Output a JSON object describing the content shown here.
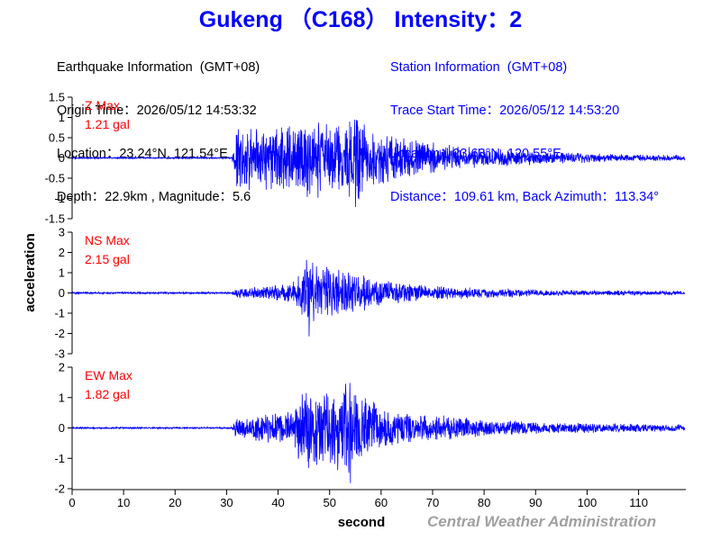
{
  "title": "Gukeng （C168） Intensity：2",
  "earthquake": {
    "header": "Earthquake Information  (GMT+08)",
    "origin_time": "Origin Time：2026/05/12 14:53:32",
    "location": "Location：23.24°N, 121.54°E",
    "depth_magnitude": "Depth：22.9km , Magnitude：5.6"
  },
  "station": {
    "header": "Station Information  (GMT+08)",
    "trace_start": "Trace Start Time：2026/05/12 14:53:20",
    "location": "Location：23.63°N, 120.55°E",
    "distance_azimuth": "Distance：109.61 km, Back Azimuth：113.34°"
  },
  "footer": "Central Weather Administration",
  "colors": {
    "trace": "#0000ff",
    "label": "#ff0000",
    "title": "#0000ff",
    "footer": "#a0a0a0"
  },
  "chart_data": {
    "type": "line",
    "xlabel": "second",
    "ylabel": "acceleration",
    "xlim": [
      0,
      119
    ],
    "xticks": [
      0,
      10,
      20,
      30,
      40,
      50,
      60,
      70,
      80,
      90,
      100,
      110
    ],
    "grid": false,
    "panels": [
      {
        "name": "Z",
        "label": "Z Max",
        "max_label": "1.21 gal",
        "max": 1.21,
        "ylim": [
          -1.5,
          1.5
        ],
        "yticks": [
          -1.5,
          -1,
          -0.5,
          0,
          0.5,
          1,
          1.5
        ],
        "ytick_labels": [
          "-1.5",
          "-1",
          "-0.5",
          "0",
          "0.5",
          "1",
          "1.5"
        ],
        "envelope": [
          [
            0,
            0.02
          ],
          [
            31,
            0.02
          ],
          [
            31.5,
            0.4
          ],
          [
            32,
            0.9
          ],
          [
            36,
            0.8
          ],
          [
            40,
            0.9
          ],
          [
            44,
            1.0
          ],
          [
            48,
            1.0
          ],
          [
            52,
            0.9
          ],
          [
            55,
            1.2
          ],
          [
            58,
            0.75
          ],
          [
            63,
            0.6
          ],
          [
            68,
            0.45
          ],
          [
            75,
            0.3
          ],
          [
            85,
            0.2
          ],
          [
            95,
            0.15
          ],
          [
            105,
            0.1
          ],
          [
            119,
            0.07
          ]
        ]
      },
      {
        "name": "NS",
        "label": "NS Max",
        "max_label": "2.15 gal",
        "max": 2.15,
        "ylim": [
          -3,
          3
        ],
        "yticks": [
          -3,
          -2,
          -1,
          0,
          1,
          2,
          3
        ],
        "ytick_labels": [
          "-3",
          "-2",
          "-1",
          "0",
          "1",
          "2",
          "3"
        ],
        "envelope": [
          [
            0,
            0.05
          ],
          [
            31,
            0.05
          ],
          [
            32,
            0.25
          ],
          [
            38,
            0.35
          ],
          [
            43,
            0.6
          ],
          [
            45,
            1.3
          ],
          [
            46,
            2.1
          ],
          [
            48,
            1.5
          ],
          [
            50,
            1.3
          ],
          [
            55,
            1.1
          ],
          [
            60,
            0.7
          ],
          [
            65,
            0.5
          ],
          [
            70,
            0.4
          ],
          [
            80,
            0.25
          ],
          [
            95,
            0.15
          ],
          [
            119,
            0.1
          ]
        ]
      },
      {
        "name": "EW",
        "label": "EW Max",
        "max_label": "1.82 gal",
        "max": 1.82,
        "ylim": [
          -2,
          2
        ],
        "yticks": [
          -2,
          -1,
          0,
          1,
          2
        ],
        "ytick_labels": [
          "-2",
          "-1",
          "0",
          "1",
          "2"
        ],
        "envelope": [
          [
            0,
            0.03
          ],
          [
            31,
            0.03
          ],
          [
            32,
            0.4
          ],
          [
            38,
            0.5
          ],
          [
            43,
            0.6
          ],
          [
            45,
            1.6
          ],
          [
            47,
            1.5
          ],
          [
            50,
            1.2
          ],
          [
            54,
            1.8
          ],
          [
            56,
            1.1
          ],
          [
            60,
            0.8
          ],
          [
            65,
            0.6
          ],
          [
            70,
            0.45
          ],
          [
            80,
            0.3
          ],
          [
            95,
            0.18
          ],
          [
            119,
            0.12
          ]
        ]
      }
    ]
  }
}
